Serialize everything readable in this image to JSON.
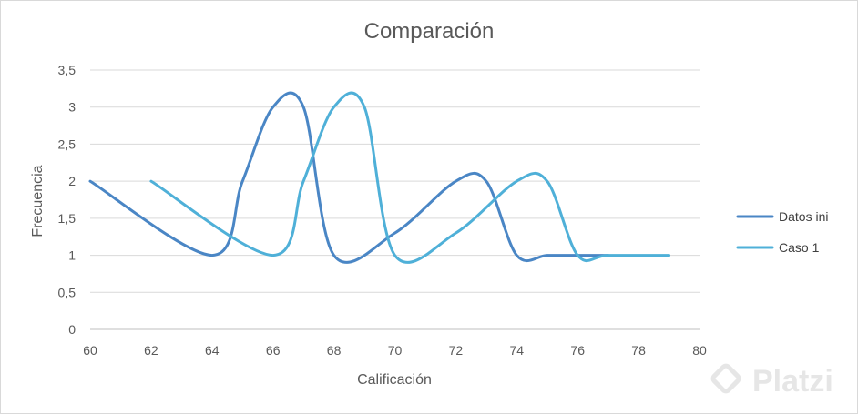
{
  "chart_data": {
    "type": "line",
    "title": "Comparación",
    "xlabel": "Calificación",
    "ylabel": "Frecuencia",
    "xlim": [
      60,
      80
    ],
    "ylim": [
      0,
      3.5
    ],
    "x_ticks": [
      "60",
      "62",
      "64",
      "66",
      "68",
      "70",
      "72",
      "74",
      "76",
      "78",
      "80"
    ],
    "y_ticks": [
      "0",
      "0,5",
      "1",
      "1,5",
      "2",
      "2,5",
      "3",
      "3,5"
    ],
    "grid": true,
    "smooth": true,
    "legend_position": "right",
    "series": [
      {
        "name": "Datos ini",
        "color": "#4a86c5",
        "x": [
          60,
          64,
          65,
          66,
          67,
          68,
          70,
          72,
          73,
          74,
          75,
          76,
          77
        ],
        "y": [
          2,
          1,
          2,
          3,
          3,
          1,
          1.3,
          2,
          2,
          1,
          1,
          1,
          1
        ]
      },
      {
        "name": "Caso 1",
        "color": "#4fb0d8",
        "x": [
          62,
          66,
          67,
          68,
          69,
          70,
          72,
          74,
          75,
          76,
          77,
          79
        ],
        "y": [
          2,
          1,
          2,
          3,
          3,
          1,
          1.3,
          2,
          2,
          1,
          1,
          1
        ]
      }
    ]
  },
  "watermark": {
    "text": "Platzi",
    "icon": "platzi-logo-icon"
  }
}
